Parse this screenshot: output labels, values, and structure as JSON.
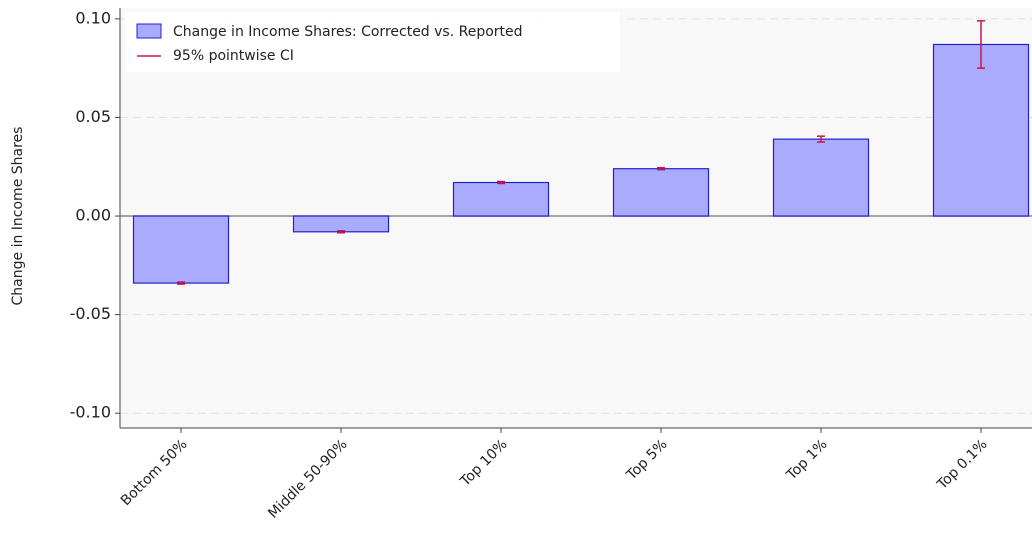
{
  "chart_data": {
    "type": "bar",
    "y_label": "Change in Income Shares",
    "categories": [
      "Bottom 50%",
      "Middle 50-90%",
      "Top 10%",
      "Top 5%",
      "Top 1%",
      "Top 0.1%"
    ],
    "series": [
      {
        "name": "Change in Income Shares: Corrected vs. Reported",
        "color": "#aaaaff",
        "edge_color": "#2222cc",
        "values": [
          -0.034,
          -0.008,
          0.017,
          0.024,
          0.039,
          0.087
        ],
        "errors": [
          0.0005,
          0.0005,
          0.0005,
          0.0005,
          0.0015,
          0.012
        ],
        "error_label": "95% pointwise CI",
        "error_color": "#c8174a"
      }
    ],
    "ylim": [
      -0.1075,
      0.1055
    ],
    "yticks": [
      {
        "value": -0.1,
        "label": "-0.10"
      },
      {
        "value": -0.05,
        "label": "-0.05"
      },
      {
        "value": 0,
        "label": "0.00"
      },
      {
        "value": 0.05,
        "label": "0.05"
      },
      {
        "value": 0.1,
        "label": "0.10"
      }
    ],
    "grid": true,
    "legend": "upper left"
  }
}
